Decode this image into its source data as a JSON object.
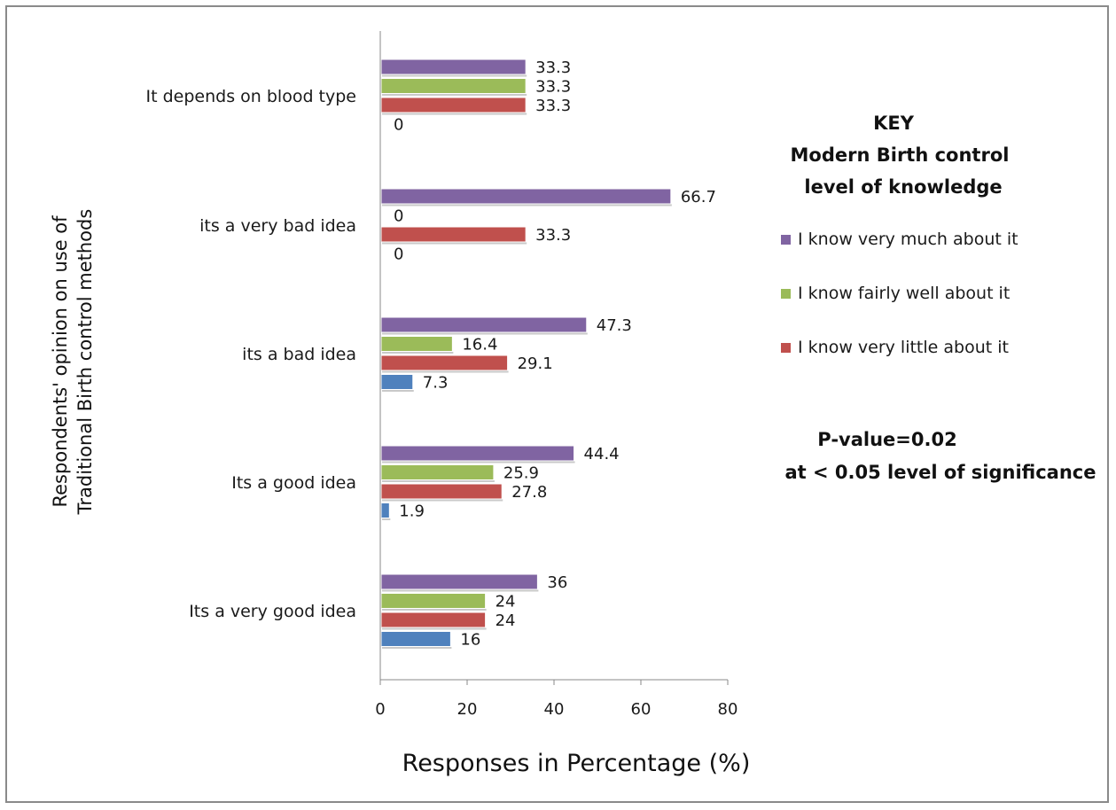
{
  "chart_data": {
    "type": "bar",
    "orientation": "horizontal",
    "categories": [
      "It depends on blood type",
      "its a very bad idea",
      "its a bad idea",
      "Its a good idea",
      "Its a very good idea"
    ],
    "series": [
      {
        "name": "I know very much about it",
        "color": "#8064a2",
        "values": [
          33.3,
          66.7,
          47.3,
          44.4,
          36
        ]
      },
      {
        "name": "I know fairly well about it",
        "color": "#9bbb59",
        "values": [
          33.3,
          0,
          16.4,
          25.9,
          24
        ]
      },
      {
        "name": "I know very little about it",
        "color": "#c0504d",
        "values": [
          33.3,
          33.3,
          29.1,
          27.8,
          24
        ]
      },
      {
        "name": "",
        "color": "#4f81bd",
        "values": [
          0,
          0,
          7.3,
          1.9,
          16
        ]
      }
    ],
    "data_label_text": [
      [
        "33.3",
        "66.7",
        "47.3",
        "44.4",
        "36"
      ],
      [
        "33.3",
        "0",
        "16.4",
        "25.9",
        "24"
      ],
      [
        "33.3",
        "33.3",
        "29.1",
        "27.8",
        "24"
      ],
      [
        "0",
        "0",
        "7.3",
        "1.9",
        "16"
      ]
    ],
    "xlabel": "Responses in Percentage (%)",
    "ylabel": [
      "Respondents' opinion on use of",
      "Traditional Birth control methods"
    ],
    "xlim": [
      0,
      80
    ],
    "xticks": [
      "0",
      "20",
      "40",
      "60",
      "80"
    ],
    "grid": false,
    "legend_position": "right"
  },
  "key": {
    "title": "KEY",
    "subtitle_line1": "Modern Birth control",
    "subtitle_line2": "level of knowledge"
  },
  "stats": {
    "pvalue": "P-value=0.02",
    "significance": "at < 0.05 level of significance"
  }
}
